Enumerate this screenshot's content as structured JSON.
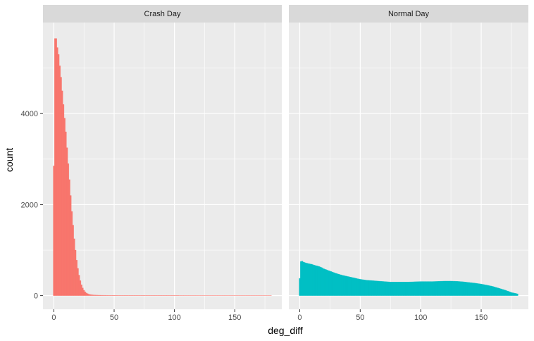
{
  "chart_data": {
    "type": "histogram",
    "facet": "faceted histogram, two panels side by side",
    "xlabel": "deg_diff",
    "ylabel": "count",
    "xlim": [
      -9,
      189
    ],
    "ylim": [
      -300,
      6000
    ],
    "x_ticks": [
      0,
      50,
      100,
      150
    ],
    "y_ticks": [
      0,
      2000,
      4000
    ],
    "bin_width": 1,
    "panels": [
      {
        "name": "Crash Day",
        "color": "#F8766D",
        "x": [
          0,
          1,
          2,
          3,
          4,
          5,
          6,
          7,
          8,
          9,
          10,
          11,
          12,
          13,
          14,
          15,
          16,
          17,
          18,
          19,
          20,
          21,
          22,
          23,
          24,
          25,
          26,
          27,
          28,
          29,
          30,
          32,
          35,
          40,
          45,
          50,
          60,
          80,
          100,
          120,
          140,
          160,
          180
        ],
        "counts": [
          2850,
          5650,
          5650,
          5450,
          5300,
          5050,
          4800,
          4500,
          4200,
          3900,
          3600,
          3250,
          2900,
          2550,
          2200,
          1850,
          1550,
          1250,
          1000,
          780,
          600,
          450,
          330,
          240,
          170,
          120,
          85,
          60,
          45,
          33,
          25,
          18,
          12,
          8,
          6,
          5,
          4,
          3,
          3,
          2,
          2,
          2,
          2
        ]
      },
      {
        "name": "Normal Day",
        "color": "#00BFC4",
        "x": [
          0,
          1,
          2,
          3,
          5,
          8,
          10,
          12,
          15,
          18,
          20,
          25,
          30,
          35,
          40,
          45,
          50,
          55,
          60,
          65,
          70,
          75,
          80,
          85,
          90,
          95,
          100,
          105,
          110,
          115,
          120,
          125,
          130,
          135,
          140,
          145,
          150,
          155,
          160,
          165,
          170,
          175,
          180
        ],
        "counts": [
          380,
          750,
          760,
          740,
          720,
          700,
          690,
          670,
          650,
          620,
          590,
          540,
          490,
          450,
          420,
          390,
          360,
          340,
          330,
          320,
          310,
          300,
          300,
          300,
          300,
          305,
          310,
          310,
          310,
          315,
          320,
          320,
          315,
          305,
          290,
          275,
          255,
          230,
          200,
          160,
          120,
          70,
          40
        ]
      }
    ]
  }
}
